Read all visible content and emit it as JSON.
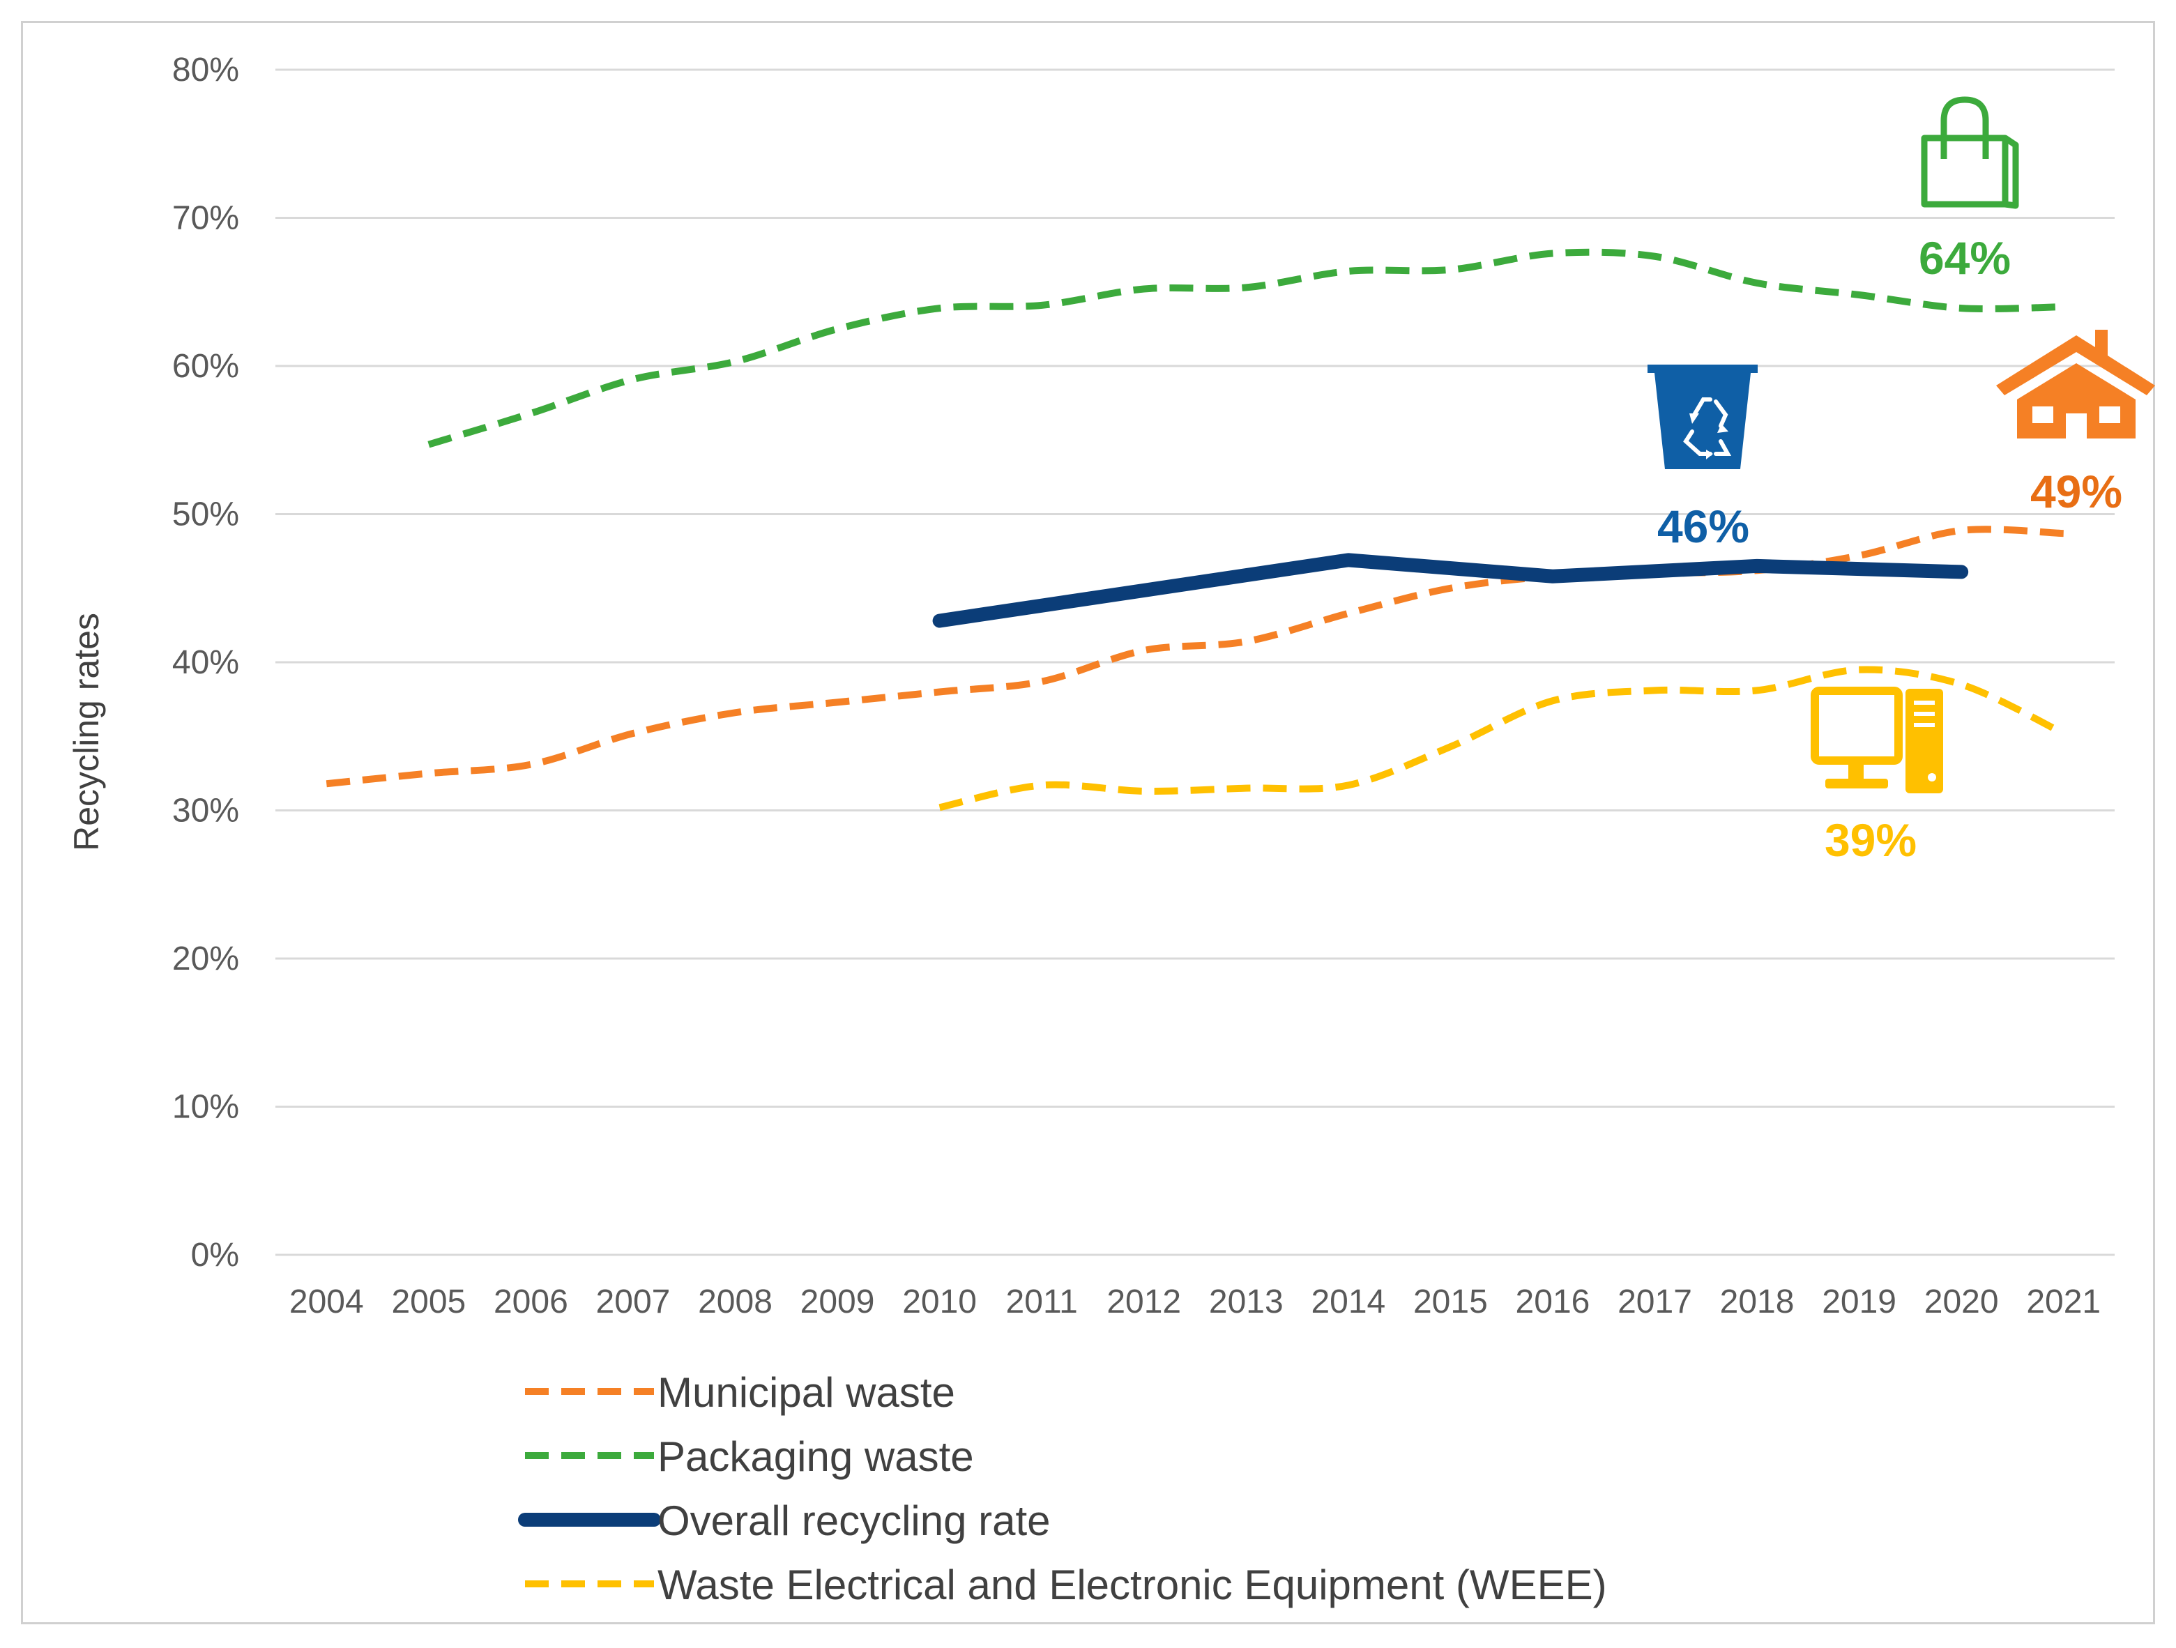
{
  "colors": {
    "municipal": "#F58025",
    "packaging": "#3CAA3C",
    "overall": "#0B3D78",
    "weee": "#FFC000",
    "bin": "#0F5FA6",
    "grid": "#d9d9d9",
    "tick": "#595959"
  },
  "chart_data": {
    "type": "line",
    "title": "",
    "xlabel": "",
    "ylabel": "Recycling rates",
    "ylim": [
      0,
      0.8
    ],
    "yticks": [
      "0%",
      "10%",
      "20%",
      "30%",
      "40%",
      "50%",
      "60%",
      "70%",
      "80%"
    ],
    "grid": true,
    "legend_position": "bottom",
    "categories": [
      "2004",
      "2005",
      "2006",
      "2007",
      "2008",
      "2009",
      "2010",
      "2011",
      "2012",
      "2013",
      "2014",
      "2015",
      "2016",
      "2017",
      "2018",
      "2019",
      "2020",
      "2021"
    ],
    "series": [
      {
        "key": "municipal",
        "name": "Municipal waste",
        "style": "dashed",
        "values": [
          0.318,
          0.325,
          0.331,
          0.352,
          0.366,
          0.373,
          0.38,
          0.387,
          0.408,
          0.414,
          0.433,
          0.45,
          0.458,
          0.46,
          0.462,
          0.472,
          0.489,
          0.487
        ]
      },
      {
        "key": "packaging",
        "name": "Packaging waste",
        "style": "dashed",
        "values": [
          null,
          0.547,
          0.568,
          0.591,
          0.603,
          0.625,
          0.639,
          0.641,
          0.652,
          0.653,
          0.664,
          0.665,
          0.676,
          0.674,
          0.656,
          0.648,
          0.639,
          0.64
        ]
      },
      {
        "key": "overall",
        "name": "Overall recycling rate",
        "style": "solid",
        "values": [
          null,
          null,
          null,
          null,
          null,
          null,
          0.428,
          null,
          null,
          null,
          0.469,
          null,
          0.458,
          null,
          0.465,
          null,
          0.461,
          null
        ]
      },
      {
        "key": "weee",
        "name": "Waste Electrical and Electronic Equipment (WEEE)",
        "style": "dashed",
        "values": [
          null,
          null,
          null,
          null,
          null,
          null,
          0.302,
          0.317,
          0.313,
          0.315,
          0.317,
          0.343,
          0.374,
          0.381,
          0.381,
          0.395,
          0.385,
          0.352
        ]
      }
    ],
    "annotations": [
      {
        "key": "packaging",
        "icon": "shopping-bag-icon",
        "label": "64%"
      },
      {
        "key": "municipal",
        "icon": "house-icon",
        "label": "49%"
      },
      {
        "key": "overall",
        "icon": "recycling-bin-icon",
        "label": "46%"
      },
      {
        "key": "weee",
        "icon": "computer-icon",
        "label": "39%"
      }
    ]
  }
}
